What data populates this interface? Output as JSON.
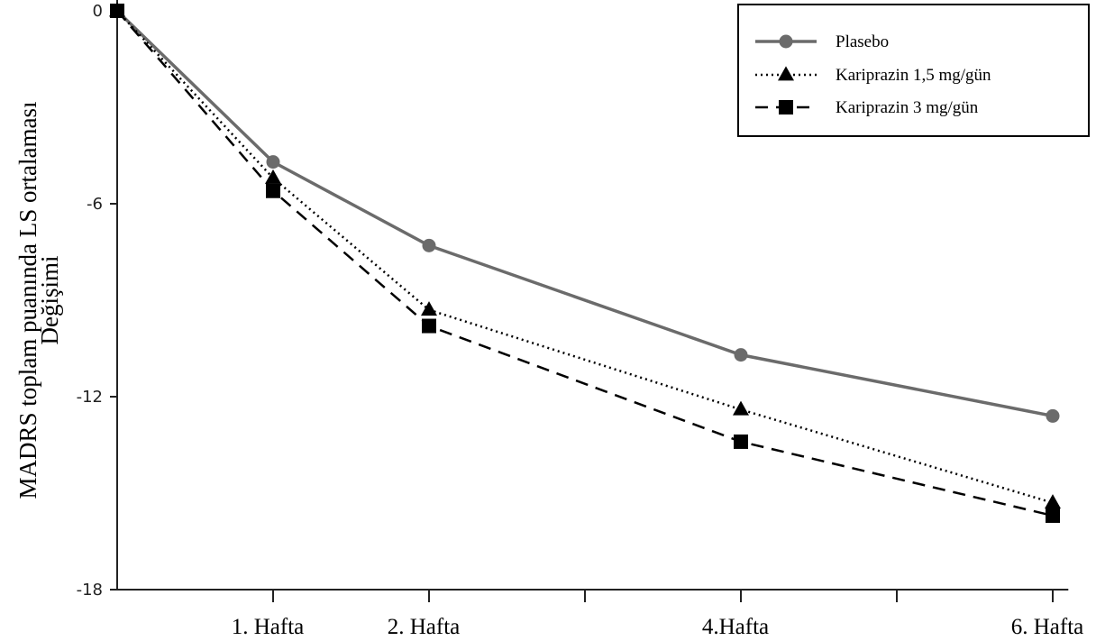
{
  "chart_data": {
    "type": "line",
    "title": "",
    "xlabel": "",
    "ylabel": "MADRS toplam puanında LS ortalaması Değişimi",
    "x_positions": [
      0,
      1,
      2,
      3,
      4,
      5,
      6
    ],
    "x_tick_labels": [
      {
        "x": 1,
        "label": "1. Hafta"
      },
      {
        "x": 2,
        "label": "2. Hafta"
      },
      {
        "x": 4,
        "label": "4.Hafta"
      },
      {
        "x": 6,
        "label": "6. Hafta"
      }
    ],
    "y_ticks": [
      0,
      -6,
      -12,
      -18
    ],
    "y_tick_labels": [
      "0",
      "-6",
      "-12",
      "-18"
    ],
    "xlim": [
      0,
      6.1
    ],
    "ylim": [
      -18,
      0
    ],
    "grid": false,
    "legend_position": "top-right",
    "series": [
      {
        "name": "Plasebo",
        "x": [
          0,
          1,
          2,
          4,
          6
        ],
        "values": [
          0,
          -4.7,
          -7.3,
          -10.7,
          -12.6
        ],
        "color": "#6b6b6b",
        "line_style": "solid",
        "marker": "circle"
      },
      {
        "name": "Kariprazin 1,5 mg/gün",
        "x": [
          0,
          1,
          2,
          4,
          6
        ],
        "values": [
          0,
          -5.2,
          -9.3,
          -12.4,
          -15.3
        ],
        "color": "#000000",
        "line_style": "dotted",
        "marker": "triangle"
      },
      {
        "name": "Kariprazin 3 mg/gün",
        "x": [
          0,
          1,
          2,
          4,
          6
        ],
        "values": [
          0,
          -5.6,
          -9.8,
          -13.4,
          -15.7
        ],
        "color": "#000000",
        "line_style": "dashed",
        "marker": "square"
      }
    ]
  }
}
